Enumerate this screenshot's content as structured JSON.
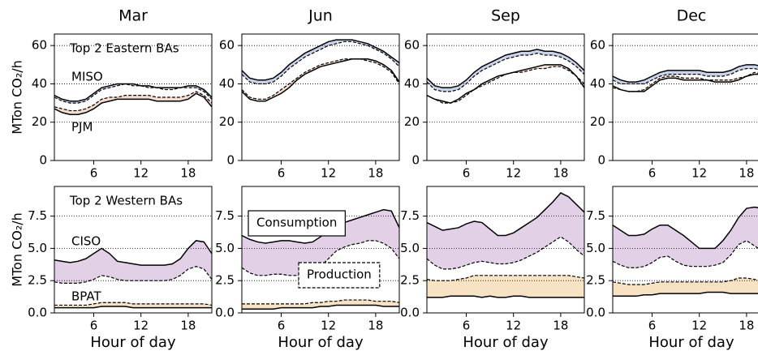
{
  "chart_data": [
    {
      "type": "line",
      "title": "Mar",
      "ylabel": "MTon CO₂/h",
      "note": "Top 2 Eastern BAs",
      "x": [
        1,
        2,
        3,
        4,
        5,
        6,
        7,
        8,
        9,
        10,
        11,
        12,
        13,
        14,
        15,
        16,
        17,
        18,
        19,
        20,
        21
      ],
      "xlim": [
        1,
        21
      ],
      "xticks": [
        6,
        12,
        18
      ],
      "ylim": [
        0,
        66
      ],
      "yticks": [
        0,
        20,
        40,
        60
      ],
      "grid": true,
      "series": [
        {
          "name": "MISO",
          "color": "#c9d3ea",
          "label_color": "#1a237e",
          "consumption": [
            34,
            32,
            31,
            31,
            32,
            35,
            38,
            39,
            40,
            40,
            40,
            39,
            39,
            38,
            38,
            38,
            38,
            39,
            39,
            37,
            33
          ],
          "production": [
            33,
            31,
            30,
            30,
            31,
            34,
            37,
            38,
            39,
            40,
            39,
            39,
            38,
            38,
            37,
            37,
            38,
            38,
            38,
            36,
            32
          ]
        },
        {
          "name": "PJM",
          "color": "#f5dccf",
          "label_color": "#c0400a",
          "consumption": [
            27,
            25,
            24,
            24,
            25,
            27,
            30,
            31,
            32,
            32,
            32,
            32,
            32,
            31,
            31,
            31,
            31,
            32,
            35,
            33,
            28
          ],
          "production": [
            28,
            27,
            26,
            26,
            27,
            29,
            32,
            33,
            33,
            34,
            34,
            34,
            34,
            33,
            33,
            33,
            33,
            34,
            36,
            34,
            30
          ]
        }
      ]
    },
    {
      "type": "line",
      "title": "Jun",
      "x": [
        1,
        2,
        3,
        4,
        5,
        6,
        7,
        8,
        9,
        10,
        11,
        12,
        13,
        14,
        15,
        16,
        17,
        18,
        19,
        20,
        21
      ],
      "xlim": [
        1,
        21
      ],
      "xticks": [
        6,
        12,
        18
      ],
      "ylim": [
        0,
        66
      ],
      "yticks": [
        0,
        20,
        40,
        60
      ],
      "grid": true,
      "series": [
        {
          "color": "#c9d3ea",
          "consumption": [
            47,
            43,
            42,
            42,
            43,
            46,
            50,
            53,
            56,
            58,
            60,
            62,
            63,
            63,
            63,
            62,
            61,
            59,
            57,
            54,
            51
          ],
          "production": [
            45,
            41,
            40,
            40,
            41,
            44,
            48,
            51,
            54,
            56,
            58,
            60,
            61,
            62,
            62,
            61,
            60,
            58,
            56,
            53,
            49
          ]
        },
        {
          "color": "#f5dccf",
          "consumption": [
            36,
            32,
            31,
            31,
            33,
            35,
            38,
            42,
            45,
            47,
            49,
            50,
            51,
            52,
            53,
            53,
            53,
            52,
            50,
            47,
            41
          ],
          "production": [
            37,
            33,
            32,
            32,
            34,
            37,
            40,
            43,
            46,
            48,
            50,
            51,
            52,
            53,
            53,
            53,
            52,
            51,
            49,
            46,
            40
          ]
        }
      ]
    },
    {
      "type": "line",
      "title": "Sep",
      "x": [
        1,
        2,
        3,
        4,
        5,
        6,
        7,
        8,
        9,
        10,
        11,
        12,
        13,
        14,
        15,
        16,
        17,
        18,
        19,
        20,
        21
      ],
      "xlim": [
        1,
        21
      ],
      "xticks": [
        6,
        12,
        18
      ],
      "ylim": [
        0,
        66
      ],
      "yticks": [
        0,
        20,
        40,
        60
      ],
      "grid": true,
      "series": [
        {
          "color": "#c9d3ea",
          "consumption": [
            43,
            39,
            38,
            38,
            39,
            42,
            46,
            49,
            51,
            53,
            55,
            56,
            57,
            57,
            58,
            57,
            57,
            56,
            54,
            51,
            47
          ],
          "production": [
            41,
            37,
            36,
            36,
            37,
            40,
            44,
            47,
            49,
            51,
            53,
            54,
            55,
            55,
            56,
            55,
            55,
            54,
            52,
            49,
            45
          ]
        },
        {
          "color": "#f5dccf",
          "consumption": [
            34,
            32,
            31,
            30,
            32,
            35,
            37,
            40,
            42,
            44,
            45,
            46,
            47,
            48,
            49,
            50,
            50,
            50,
            48,
            44,
            38
          ],
          "production": [
            34,
            32,
            30,
            30,
            31,
            34,
            37,
            39,
            41,
            43,
            45,
            46,
            46,
            47,
            48,
            48,
            49,
            49,
            47,
            44,
            40
          ]
        }
      ]
    },
    {
      "type": "line",
      "title": "Dec",
      "x": [
        1,
        2,
        3,
        4,
        5,
        6,
        7,
        8,
        9,
        10,
        11,
        12,
        13,
        14,
        15,
        16,
        17,
        18,
        19,
        20,
        21
      ],
      "xlim": [
        1,
        21
      ],
      "xticks": [
        6,
        12,
        18
      ],
      "ylim": [
        0,
        66
      ],
      "yticks": [
        0,
        20,
        40,
        60
      ],
      "grid": true,
      "series": [
        {
          "color": "#c9d3ea",
          "consumption": [
            44,
            42,
            41,
            41,
            42,
            44,
            46,
            47,
            47,
            47,
            47,
            47,
            46,
            46,
            46,
            47,
            49,
            50,
            50,
            49,
            47
          ],
          "production": [
            42,
            40,
            40,
            40,
            40,
            42,
            44,
            45,
            45,
            45,
            45,
            45,
            44,
            44,
            44,
            45,
            47,
            48,
            48,
            47,
            45
          ]
        },
        {
          "color": "#f5dccf",
          "consumption": [
            39,
            37,
            36,
            36,
            36,
            39,
            42,
            43,
            43,
            42,
            42,
            42,
            42,
            41,
            41,
            41,
            42,
            44,
            45,
            45,
            44
          ],
          "production": [
            38,
            37,
            36,
            36,
            37,
            40,
            43,
            44,
            44,
            43,
            43,
            43,
            42,
            42,
            42,
            42,
            43,
            44,
            46,
            45,
            44
          ]
        }
      ]
    },
    {
      "type": "line",
      "ylabel": "MTon CO₂/h",
      "xlabel": "Hour of day",
      "note": "Top 2 Western BAs",
      "x": [
        1,
        2,
        3,
        4,
        5,
        6,
        7,
        8,
        9,
        10,
        11,
        12,
        13,
        14,
        15,
        16,
        17,
        18,
        19,
        20,
        21
      ],
      "xlim": [
        1,
        21
      ],
      "xticks": [
        6,
        12,
        18
      ],
      "ylim": [
        0,
        9.8
      ],
      "yticks": [
        {
          "value": 0,
          "label": "0.0"
        },
        2.5,
        {
          "value": 5,
          "label": "5.0"
        },
        7.5
      ],
      "grid": true,
      "series": [
        {
          "name": "CISO",
          "color": "#e1d0e6",
          "label_color": "#6a1b6f",
          "consumption": [
            4.1,
            4.0,
            3.9,
            4.0,
            4.2,
            4.6,
            5.0,
            4.6,
            4.0,
            3.9,
            3.8,
            3.7,
            3.7,
            3.7,
            3.7,
            3.8,
            4.2,
            5.0,
            5.6,
            5.5,
            4.6
          ],
          "production": [
            2.4,
            2.3,
            2.3,
            2.3,
            2.4,
            2.6,
            2.9,
            2.8,
            2.6,
            2.5,
            2.5,
            2.5,
            2.5,
            2.5,
            2.5,
            2.6,
            2.9,
            3.4,
            3.6,
            3.4,
            2.6
          ]
        },
        {
          "name": "BPAT",
          "color": "#f7e3c3",
          "label_color": "#d4940a",
          "consumption": [
            0.4,
            0.4,
            0.4,
            0.4,
            0.4,
            0.4,
            0.5,
            0.5,
            0.5,
            0.5,
            0.4,
            0.4,
            0.4,
            0.4,
            0.4,
            0.4,
            0.4,
            0.4,
            0.4,
            0.4,
            0.4
          ],
          "production": [
            0.6,
            0.6,
            0.6,
            0.6,
            0.6,
            0.7,
            0.8,
            0.8,
            0.8,
            0.8,
            0.7,
            0.7,
            0.7,
            0.7,
            0.7,
            0.7,
            0.7,
            0.7,
            0.7,
            0.7,
            0.6
          ]
        }
      ]
    },
    {
      "type": "line",
      "xlabel": "Hour of day",
      "legend": {
        "consumption": "Consumption",
        "production": "Production"
      },
      "x": [
        1,
        2,
        3,
        4,
        5,
        6,
        7,
        8,
        9,
        10,
        11,
        12,
        13,
        14,
        15,
        16,
        17,
        18,
        19,
        20,
        21
      ],
      "xlim": [
        1,
        21
      ],
      "xticks": [
        6,
        12,
        18
      ],
      "ylim": [
        0,
        9.8
      ],
      "yticks": [
        {
          "value": 0,
          "label": "0.0"
        },
        2.5,
        {
          "value": 5,
          "label": "5.0"
        },
        7.5
      ],
      "grid": true,
      "series": [
        {
          "color": "#e1d0e6",
          "consumption": [
            6.0,
            5.7,
            5.5,
            5.4,
            5.5,
            5.6,
            5.6,
            5.5,
            5.4,
            5.5,
            5.9,
            6.4,
            6.8,
            7.0,
            7.2,
            7.4,
            7.6,
            7.8,
            8.0,
            7.9,
            6.6
          ],
          "production": [
            3.5,
            3.1,
            2.9,
            2.9,
            3.0,
            3.0,
            2.9,
            2.9,
            3.0,
            3.2,
            3.6,
            4.2,
            4.8,
            5.1,
            5.3,
            5.4,
            5.6,
            5.6,
            5.4,
            5.0,
            4.2
          ]
        },
        {
          "color": "#f7e3c3",
          "consumption": [
            0.3,
            0.3,
            0.3,
            0.3,
            0.3,
            0.4,
            0.4,
            0.4,
            0.4,
            0.4,
            0.5,
            0.5,
            0.6,
            0.6,
            0.6,
            0.6,
            0.6,
            0.6,
            0.5,
            0.5,
            0.5
          ],
          "production": [
            0.7,
            0.7,
            0.7,
            0.7,
            0.7,
            0.7,
            0.7,
            0.7,
            0.7,
            0.8,
            0.8,
            0.9,
            0.9,
            1.0,
            1.0,
            1.0,
            1.0,
            0.9,
            0.9,
            0.9,
            0.8
          ]
        }
      ]
    },
    {
      "type": "line",
      "xlabel": "Hour of day",
      "x": [
        1,
        2,
        3,
        4,
        5,
        6,
        7,
        8,
        9,
        10,
        11,
        12,
        13,
        14,
        15,
        16,
        17,
        18,
        19,
        20,
        21
      ],
      "xlim": [
        1,
        21
      ],
      "xticks": [
        6,
        12,
        18
      ],
      "ylim": [
        0,
        9.8
      ],
      "yticks": [
        {
          "value": 0,
          "label": "0.0"
        },
        2.5,
        {
          "value": 5,
          "label": "5.0"
        },
        7.5
      ],
      "grid": true,
      "series": [
        {
          "color": "#e1d0e6",
          "consumption": [
            7.0,
            6.7,
            6.4,
            6.5,
            6.6,
            6.9,
            7.1,
            7.0,
            6.5,
            6.0,
            6.0,
            6.2,
            6.6,
            7.0,
            7.4,
            8.0,
            8.6,
            9.3,
            9.0,
            8.4,
            7.8
          ],
          "production": [
            4.2,
            3.7,
            3.4,
            3.4,
            3.5,
            3.7,
            3.9,
            4.0,
            3.9,
            3.8,
            3.8,
            3.9,
            4.1,
            4.4,
            4.7,
            5.1,
            5.5,
            5.9,
            5.5,
            4.9,
            4.4
          ]
        },
        {
          "color": "#f7e3c3",
          "consumption": [
            1.2,
            1.2,
            1.2,
            1.3,
            1.3,
            1.3,
            1.3,
            1.2,
            1.3,
            1.2,
            1.2,
            1.3,
            1.3,
            1.2,
            1.2,
            1.2,
            1.2,
            1.2,
            1.2,
            1.2,
            1.2
          ],
          "production": [
            2.6,
            2.5,
            2.5,
            2.5,
            2.6,
            2.7,
            2.9,
            2.9,
            2.9,
            2.9,
            2.9,
            2.9,
            2.9,
            2.9,
            2.9,
            2.9,
            2.9,
            2.9,
            2.9,
            2.8,
            2.7
          ]
        }
      ]
    },
    {
      "type": "line",
      "xlabel": "Hour of day",
      "x": [
        1,
        2,
        3,
        4,
        5,
        6,
        7,
        8,
        9,
        10,
        11,
        12,
        13,
        14,
        15,
        16,
        17,
        18,
        19,
        20,
        21
      ],
      "xlim": [
        1,
        21
      ],
      "xticks": [
        6,
        12,
        18
      ],
      "ylim": [
        0,
        9.8
      ],
      "yticks": [
        {
          "value": 0,
          "label": "0.0"
        },
        2.5,
        {
          "value": 5,
          "label": "5.0"
        },
        7.5
      ],
      "grid": true,
      "series": [
        {
          "color": "#e1d0e6",
          "consumption": [
            6.8,
            6.4,
            6.0,
            6.0,
            6.1,
            6.5,
            6.8,
            6.8,
            6.4,
            6.0,
            5.5,
            5.0,
            5.0,
            5.0,
            5.6,
            6.4,
            7.4,
            8.1,
            8.2,
            8.1,
            7.8
          ],
          "production": [
            4.0,
            3.7,
            3.5,
            3.5,
            3.6,
            3.9,
            4.3,
            4.4,
            4.0,
            3.7,
            3.6,
            3.6,
            3.6,
            3.7,
            3.9,
            4.5,
            5.3,
            5.6,
            5.2,
            4.8,
            4.3
          ]
        },
        {
          "color": "#f7e3c3",
          "consumption": [
            1.3,
            1.3,
            1.3,
            1.3,
            1.4,
            1.4,
            1.5,
            1.5,
            1.5,
            1.5,
            1.5,
            1.5,
            1.6,
            1.6,
            1.6,
            1.5,
            1.5,
            1.5,
            1.5,
            1.5,
            1.5
          ],
          "production": [
            2.4,
            2.3,
            2.2,
            2.2,
            2.2,
            2.3,
            2.4,
            2.4,
            2.4,
            2.4,
            2.4,
            2.4,
            2.4,
            2.4,
            2.4,
            2.5,
            2.7,
            2.7,
            2.6,
            2.5,
            2.4
          ]
        }
      ]
    }
  ]
}
